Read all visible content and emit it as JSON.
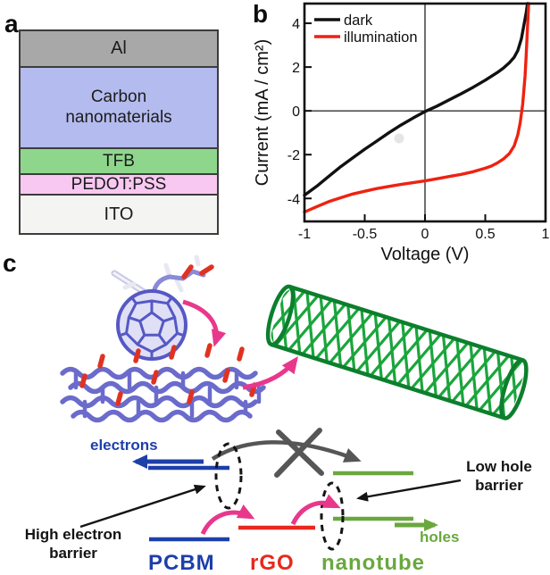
{
  "figure": {
    "panel_a": {
      "label": "a",
      "device_stack": [
        {
          "name": "Al",
          "color": "#a8a8a8"
        },
        {
          "name": "Carbon nanomaterials",
          "color": "#b4bbee"
        },
        {
          "name": "TFB",
          "color": "#8fd68d"
        },
        {
          "name": "PEDOT:PSS",
          "color": "#f9c8f2"
        },
        {
          "name": "ITO",
          "color": "#f4f4f3"
        }
      ]
    },
    "panel_b": {
      "label": "b"
    },
    "panel_c": {
      "label": "c",
      "labels": {
        "electrons": "electrons",
        "holes": "holes",
        "pcbm": "PCBM",
        "rgo": "rGO",
        "nanotube": "nanotube",
        "high_electron_barrier": "High electron barrier",
        "low_hole_barrier": "Low hole barrier"
      },
      "colors": {
        "pcbm_blue": "#1d3faa",
        "rgo_red": "#e8281c",
        "nanotube_green": "#69a83e",
        "transfer_arrow_pink": "#e8388c",
        "blocked_arrow_gray": "#565656",
        "molecule_purple": "#5558c4",
        "oxygen_red": "#e03222",
        "nanotube_model_green": "#1aa53c"
      }
    }
  },
  "chart_data": {
    "type": "line",
    "title": "",
    "xlabel": "Voltage (V)",
    "ylabel": "Current (mA / cm²)",
    "xlim": [
      -1,
      1
    ],
    "ylim": [
      -5.05,
      4.9
    ],
    "xticks": [
      -1,
      -0.5,
      0,
      0.5,
      1
    ],
    "xtick_labels": [
      "-1",
      "-0.5",
      "0",
      "0.5",
      "1"
    ],
    "yticks": [
      -4,
      -2,
      0,
      2,
      4
    ],
    "ytick_labels": [
      "-4",
      "-2",
      "0",
      "2",
      "4"
    ],
    "grid": false,
    "zero_lines": true,
    "legend_position": "top-left",
    "series": [
      {
        "name": "dark",
        "color": "#111111",
        "points": [
          [
            -1,
            -3.85
          ],
          [
            -0.9,
            -3.45
          ],
          [
            -0.8,
            -3.0
          ],
          [
            -0.7,
            -2.55
          ],
          [
            -0.6,
            -2.15
          ],
          [
            -0.5,
            -1.75
          ],
          [
            -0.4,
            -1.38
          ],
          [
            -0.3,
            -1.0
          ],
          [
            -0.2,
            -0.65
          ],
          [
            -0.1,
            -0.33
          ],
          [
            0,
            -0.03
          ],
          [
            0.1,
            0.22
          ],
          [
            0.2,
            0.5
          ],
          [
            0.3,
            0.78
          ],
          [
            0.4,
            1.08
          ],
          [
            0.5,
            1.4
          ],
          [
            0.6,
            1.75
          ],
          [
            0.65,
            1.95
          ],
          [
            0.7,
            2.2
          ],
          [
            0.74,
            2.45
          ],
          [
            0.77,
            2.75
          ],
          [
            0.8,
            3.3
          ],
          [
            0.82,
            3.9
          ],
          [
            0.84,
            4.5
          ],
          [
            0.85,
            4.9
          ]
        ]
      },
      {
        "name": "illumination",
        "color": "#ee2211",
        "points": [
          [
            -1,
            -4.62
          ],
          [
            -0.9,
            -4.38
          ],
          [
            -0.8,
            -4.15
          ],
          [
            -0.7,
            -3.97
          ],
          [
            -0.6,
            -3.8
          ],
          [
            -0.5,
            -3.67
          ],
          [
            -0.4,
            -3.55
          ],
          [
            -0.3,
            -3.45
          ],
          [
            -0.2,
            -3.36
          ],
          [
            -0.1,
            -3.28
          ],
          [
            0,
            -3.2
          ],
          [
            0.1,
            -3.1
          ],
          [
            0.2,
            -3.0
          ],
          [
            0.3,
            -2.9
          ],
          [
            0.4,
            -2.78
          ],
          [
            0.5,
            -2.62
          ],
          [
            0.55,
            -2.52
          ],
          [
            0.6,
            -2.38
          ],
          [
            0.65,
            -2.2
          ],
          [
            0.7,
            -1.95
          ],
          [
            0.74,
            -1.6
          ],
          [
            0.77,
            -1.1
          ],
          [
            0.79,
            -0.55
          ],
          [
            0.81,
            0.3
          ],
          [
            0.83,
            1.6
          ],
          [
            0.84,
            2.6
          ],
          [
            0.85,
            3.8
          ],
          [
            0.86,
            4.9
          ]
        ]
      }
    ]
  }
}
